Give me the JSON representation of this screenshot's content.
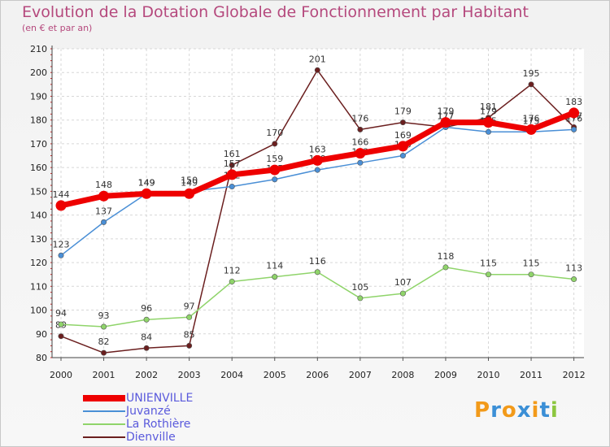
{
  "chart_data": {
    "type": "line",
    "title": "Evolution de la Dotation Globale de Fonctionnement par Habitant",
    "subtitle": "(en € et par an)",
    "xlabel": "",
    "ylabel": "",
    "x": [
      "2000",
      "2001",
      "2002",
      "2003",
      "2004",
      "2005",
      "2006",
      "2007",
      "2008",
      "2009",
      "2010",
      "2011",
      "2012"
    ],
    "ylim": [
      80,
      210
    ],
    "yticks": [
      80,
      90,
      100,
      110,
      120,
      130,
      140,
      150,
      160,
      170,
      180,
      190,
      200,
      210
    ],
    "grid": true,
    "legend_position": "bottom-left",
    "series": [
      {
        "name": "Dienville",
        "color": "#6b1f1f",
        "values": [
          89,
          82,
          84,
          85,
          161,
          170,
          201,
          176,
          179,
          177,
          181,
          195,
          177
        ]
      },
      {
        "name": "La Rothière",
        "color": "#8fd46a",
        "values": [
          94,
          93,
          96,
          97,
          112,
          114,
          116,
          105,
          107,
          118,
          115,
          115,
          113
        ]
      },
      {
        "name": "Juvanzé",
        "color": "#4a8fd6",
        "values": [
          123,
          137,
          149,
          150,
          152,
          155,
          159,
          162,
          165,
          177,
          175,
          175,
          176
        ]
      },
      {
        "name": "UNIENVILLE",
        "color": "#ee0000",
        "values": [
          144,
          148,
          149,
          149,
          157,
          159,
          163,
          166,
          169,
          179,
          179,
          176,
          183
        ]
      }
    ]
  },
  "legend": {
    "items": [
      {
        "name": "UNIENVILLE",
        "color": "#ee0000"
      },
      {
        "name": "Juvanzé",
        "color": "#4a8fd6"
      },
      {
        "name": "La Rothière",
        "color": "#8fd46a"
      },
      {
        "name": "Dienville",
        "color": "#6b1f1f"
      }
    ]
  },
  "logo": {
    "text": "Proxiti",
    "colors": [
      "#f29a1a",
      "#3b8fd6",
      "#f29a1a",
      "#3b8fd6",
      "#f29a1a",
      "#3b8fd6",
      "#8cc63f"
    ]
  }
}
